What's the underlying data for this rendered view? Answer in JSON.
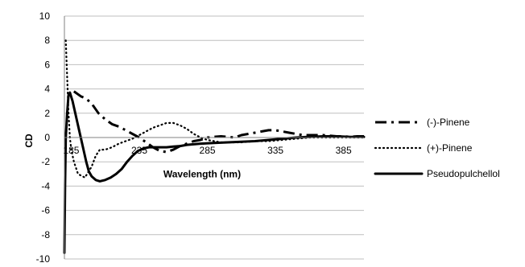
{
  "chart_data": {
    "type": "line",
    "title": "",
    "xlabel": "Wavelength (nm)",
    "ylabel": "CD",
    "xlim": [
      180,
      400
    ],
    "ylim": [
      -10,
      10
    ],
    "x_ticks": [
      185,
      235,
      285,
      335,
      385
    ],
    "y_ticks": [
      -10,
      -8,
      -6,
      -4,
      -2,
      0,
      2,
      4,
      6,
      8,
      10
    ],
    "grid": true,
    "legend_position": "right",
    "series": [
      {
        "name": "(-)-Pinene",
        "style": "long-dash-dot",
        "color": "#000000",
        "points": [
          [
            187,
            3.8
          ],
          [
            192,
            3.4
          ],
          [
            196,
            3.2
          ],
          [
            200,
            2.8
          ],
          [
            205,
            2.0
          ],
          [
            210,
            1.5
          ],
          [
            215,
            1.1
          ],
          [
            220,
            0.9
          ],
          [
            225,
            0.6
          ],
          [
            230,
            0.3
          ],
          [
            235,
            0.0
          ],
          [
            240,
            -0.4
          ],
          [
            245,
            -0.8
          ],
          [
            250,
            -1.1
          ],
          [
            255,
            -1.2
          ],
          [
            260,
            -1.0
          ],
          [
            265,
            -0.7
          ],
          [
            270,
            -0.5
          ],
          [
            275,
            -0.3
          ],
          [
            280,
            -0.2
          ],
          [
            285,
            0.0
          ],
          [
            290,
            0.05
          ],
          [
            295,
            0.1
          ],
          [
            300,
            0.05
          ],
          [
            305,
            0.0
          ],
          [
            310,
            0.2
          ],
          [
            315,
            0.3
          ],
          [
            320,
            0.4
          ],
          [
            325,
            0.5
          ],
          [
            330,
            0.6
          ],
          [
            335,
            0.6
          ],
          [
            340,
            0.5
          ],
          [
            345,
            0.4
          ],
          [
            350,
            0.3
          ],
          [
            355,
            0.2
          ],
          [
            360,
            0.2
          ],
          [
            365,
            0.2
          ],
          [
            370,
            0.2
          ],
          [
            375,
            0.15
          ],
          [
            380,
            0.1
          ],
          [
            385,
            0.1
          ],
          [
            390,
            0.05
          ],
          [
            395,
            0.1
          ],
          [
            400,
            0.1
          ]
        ]
      },
      {
        "name": "(+)-Pinene",
        "style": "dotted",
        "color": "#000000",
        "points": [
          [
            181,
            8.0
          ],
          [
            182,
            5.0
          ],
          [
            183,
            2.0
          ],
          [
            184,
            0.0
          ],
          [
            185,
            -1.0
          ],
          [
            187,
            -2.0
          ],
          [
            190,
            -3.0
          ],
          [
            195,
            -3.3
          ],
          [
            200,
            -2.4
          ],
          [
            203,
            -1.5
          ],
          [
            206,
            -1.0
          ],
          [
            210,
            -1.0
          ],
          [
            215,
            -0.8
          ],
          [
            220,
            -0.5
          ],
          [
            225,
            -0.3
          ],
          [
            230,
            -0.1
          ],
          [
            235,
            0.2
          ],
          [
            240,
            0.5
          ],
          [
            245,
            0.8
          ],
          [
            250,
            1.0
          ],
          [
            255,
            1.2
          ],
          [
            260,
            1.2
          ],
          [
            265,
            1.0
          ],
          [
            270,
            0.7
          ],
          [
            275,
            0.3
          ],
          [
            280,
            0.0
          ],
          [
            285,
            -0.2
          ],
          [
            290,
            -0.3
          ],
          [
            295,
            -0.4
          ],
          [
            300,
            -0.4
          ],
          [
            310,
            -0.4
          ],
          [
            320,
            -0.3
          ],
          [
            330,
            -0.3
          ],
          [
            340,
            -0.2
          ],
          [
            350,
            -0.1
          ],
          [
            360,
            0.0
          ],
          [
            370,
            0.0
          ],
          [
            380,
            0.0
          ],
          [
            390,
            0.0
          ],
          [
            400,
            0.0
          ]
        ]
      },
      {
        "name": "Pseudopulchellol",
        "style": "solid",
        "color": "#000000",
        "points": [
          [
            180,
            -9.5
          ],
          [
            180.5,
            -4.0
          ],
          [
            181,
            0.0
          ],
          [
            182,
            2.0
          ],
          [
            183,
            3.5
          ],
          [
            184,
            3.7
          ],
          [
            186,
            3.0
          ],
          [
            188,
            2.0
          ],
          [
            190,
            1.0
          ],
          [
            192,
            0.0
          ],
          [
            194,
            -1.0
          ],
          [
            196,
            -2.0
          ],
          [
            198,
            -2.8
          ],
          [
            200,
            -3.2
          ],
          [
            203,
            -3.5
          ],
          [
            206,
            -3.6
          ],
          [
            210,
            -3.5
          ],
          [
            214,
            -3.3
          ],
          [
            218,
            -3.0
          ],
          [
            222,
            -2.6
          ],
          [
            226,
            -2.0
          ],
          [
            230,
            -1.5
          ],
          [
            234,
            -1.1
          ],
          [
            238,
            -0.9
          ],
          [
            242,
            -0.8
          ],
          [
            246,
            -0.8
          ],
          [
            250,
            -0.8
          ],
          [
            255,
            -0.8
          ],
          [
            260,
            -0.75
          ],
          [
            265,
            -0.7
          ],
          [
            270,
            -0.6
          ],
          [
            280,
            -0.5
          ],
          [
            290,
            -0.45
          ],
          [
            300,
            -0.4
          ],
          [
            310,
            -0.35
          ],
          [
            320,
            -0.3
          ],
          [
            330,
            -0.2
          ],
          [
            340,
            -0.1
          ],
          [
            350,
            0.0
          ],
          [
            360,
            0.05
          ],
          [
            370,
            0.1
          ],
          [
            380,
            0.1
          ],
          [
            390,
            0.05
          ],
          [
            400,
            0.05
          ]
        ]
      }
    ]
  }
}
